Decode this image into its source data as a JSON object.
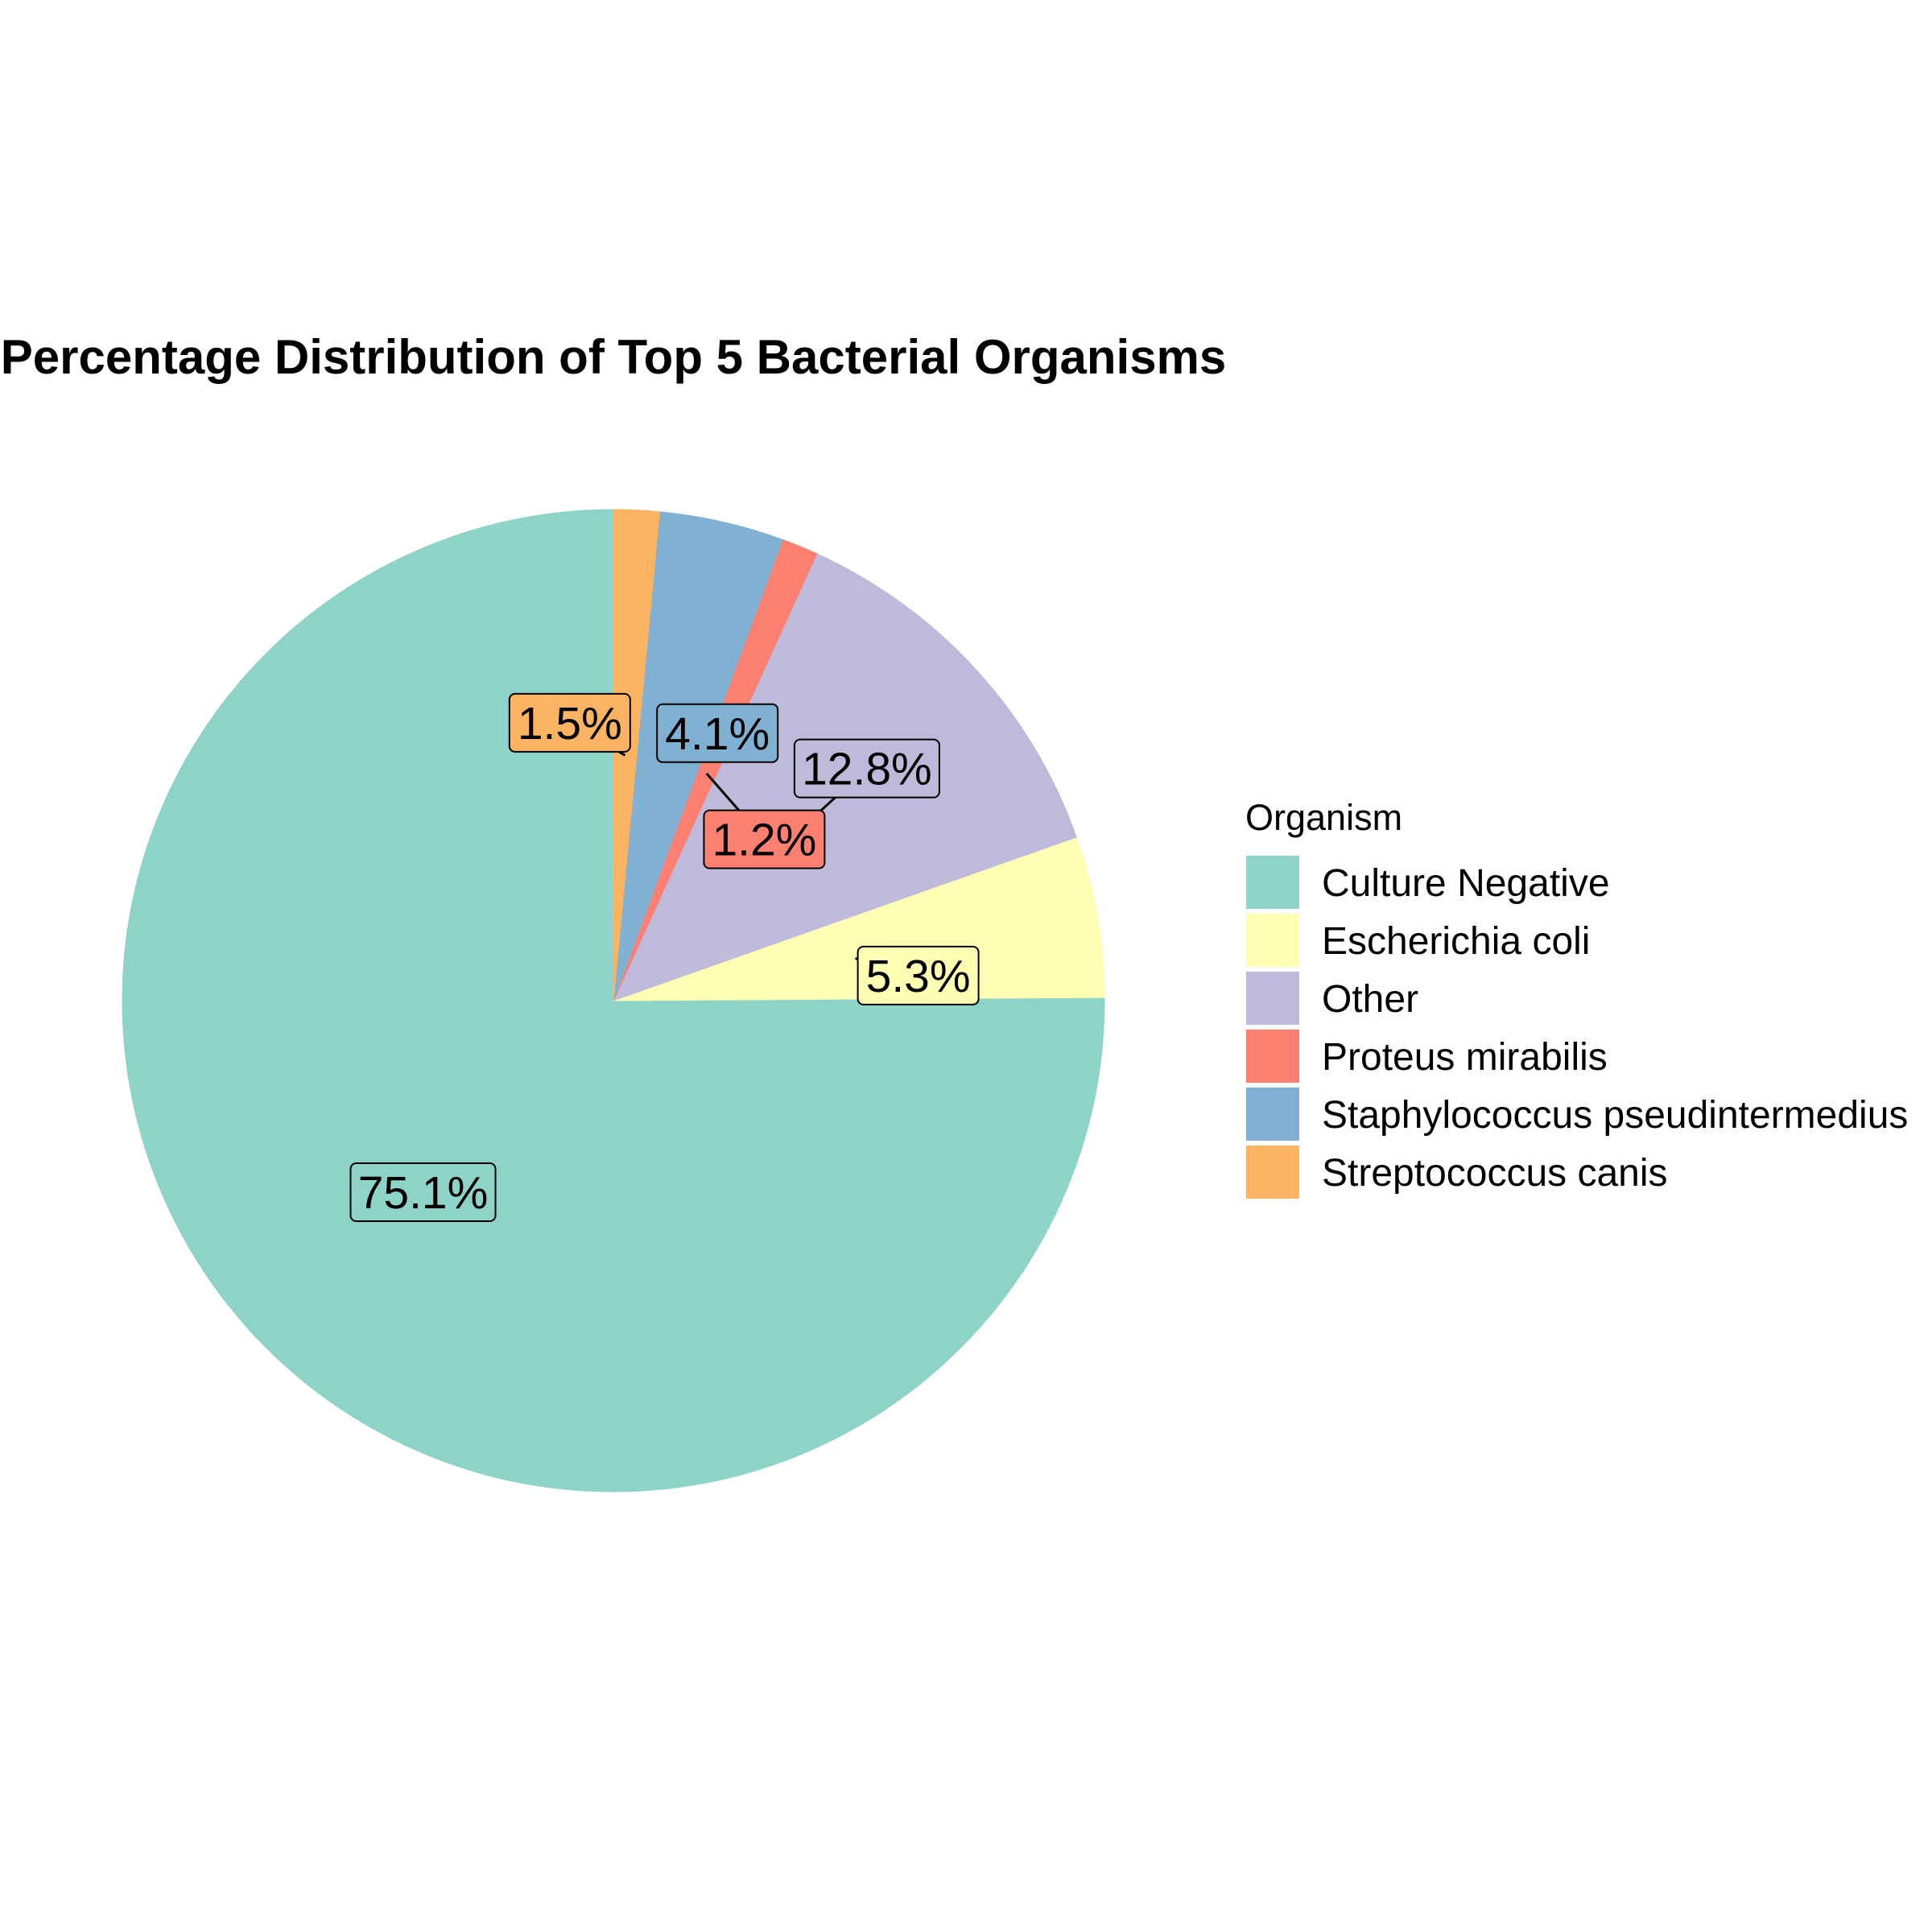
{
  "chart_data": {
    "type": "pie",
    "title": "Percentage Distribution of Top 5 Bacterial Organisms",
    "legend_title": "Organism",
    "legend_position": "right",
    "start_angle": "12 o'clock",
    "direction": "counterclockwise",
    "slices": [
      {
        "name": "Culture Negative",
        "value": 75.1,
        "label": "75.1%",
        "color": "#8DD3C7"
      },
      {
        "name": "Escherichia coli",
        "value": 5.3,
        "label": "5.3%",
        "color": "#FFFFB3"
      },
      {
        "name": "Other",
        "value": 12.8,
        "label": "12.8%",
        "color": "#BEBADA"
      },
      {
        "name": "Proteus mirabilis",
        "value": 1.2,
        "label": "1.2%",
        "color": "#FB8072"
      },
      {
        "name": "Staphylococcus pseudintermedius",
        "value": 4.1,
        "label": "4.1%",
        "color": "#80B1D3"
      },
      {
        "name": "Streptococcus canis",
        "value": 1.5,
        "label": "1.5%",
        "color": "#FDB462"
      }
    ]
  }
}
